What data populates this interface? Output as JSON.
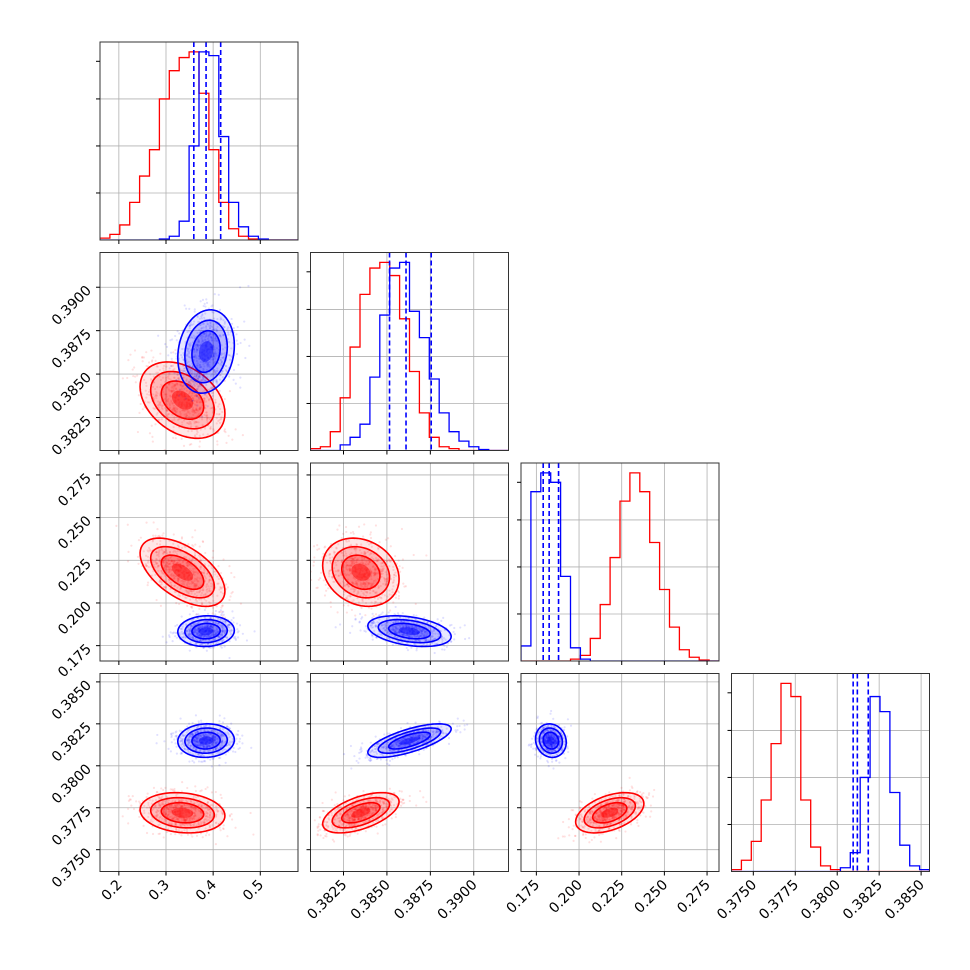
{
  "chart_data": {
    "type": "corner",
    "title": "",
    "parameters": [
      {
        "label": "",
        "range": [
          0.16,
          0.58
        ],
        "ticks": [
          0.2,
          0.3,
          0.4,
          0.5
        ],
        "tick_labels": [
          "0.2",
          "0.3",
          "0.4",
          "0.5"
        ]
      },
      {
        "label": "",
        "range": [
          0.3806,
          0.392
        ],
        "ticks": [
          0.3825,
          0.385,
          0.3875,
          0.39
        ],
        "tick_labels": [
          "0.3825",
          "0.3850",
          "0.3875",
          "0.3900"
        ]
      },
      {
        "label": "",
        "range": [
          0.166,
          0.282
        ],
        "ticks": [
          0.175,
          0.2,
          0.225,
          0.25,
          0.275
        ],
        "tick_labels": [
          "0.175",
          "0.200",
          "0.225",
          "0.250",
          "0.275"
        ]
      },
      {
        "label": "",
        "range": [
          0.3737,
          0.3855
        ],
        "ticks": [
          0.375,
          0.3775,
          0.38,
          0.3825,
          0.385
        ],
        "tick_labels": [
          "0.3750",
          "0.3775",
          "0.3800",
          "0.3825",
          "0.3850"
        ]
      }
    ],
    "series": [
      {
        "color": "#ff0000",
        "means": [
          0.335,
          0.3835,
          0.218,
          0.3772
        ],
        "sds": [
          0.045,
          0.0011,
          0.01,
          0.0006
        ],
        "correlations": {
          "0-1": -0.35,
          "0-2": -0.55,
          "0-3": -0.15,
          "1-2": -0.2,
          "1-3": 0.55,
          "2-3": 0.45
        },
        "histograms": [
          [
            0.01,
            0.03,
            0.08,
            0.2,
            0.34,
            0.48,
            0.75,
            0.9,
            0.97,
            1.0,
            0.78,
            0.48,
            0.2,
            0.06,
            0.02,
            0.005,
            0,
            0,
            0,
            0
          ],
          [
            0.01,
            0.02,
            0.1,
            0.28,
            0.55,
            0.83,
            0.97,
            1.0,
            0.93,
            0.7,
            0.42,
            0.2,
            0.07,
            0.02,
            0.01,
            0,
            0,
            0,
            0,
            0
          ],
          [
            0,
            0,
            0,
            0,
            0,
            0.01,
            0.03,
            0.12,
            0.3,
            0.55,
            0.85,
            1.0,
            0.9,
            0.63,
            0.38,
            0.18,
            0.06,
            0.02,
            0.005,
            0
          ],
          [
            0.01,
            0.06,
            0.16,
            0.38,
            0.68,
            1.0,
            0.93,
            0.38,
            0.13,
            0.03,
            0.01,
            0,
            0,
            0,
            0,
            0,
            0,
            0,
            0,
            0
          ]
        ]
      },
      {
        "color": "#0000ff",
        "means": [
          0.385,
          0.3863,
          0.1835,
          0.3815
        ],
        "sds": [
          0.03,
          0.0012,
          0.0045,
          0.0005
        ],
        "correlations": {
          "0-1": 0.15,
          "0-2": 0.05,
          "0-3": 0.05,
          "1-2": -0.35,
          "1-3": 0.7,
          "2-3": -0.1
        },
        "histograms": [
          [
            0,
            0,
            0,
            0,
            0,
            0,
            0.005,
            0.02,
            0.1,
            0.5,
            1.0,
            0.98,
            0.55,
            0.2,
            0.07,
            0.02,
            0.005,
            0,
            0,
            0
          ],
          [
            0,
            0,
            0,
            0.03,
            0.07,
            0.14,
            0.39,
            0.72,
            0.97,
            1.0,
            0.74,
            0.6,
            0.38,
            0.2,
            0.1,
            0.05,
            0.02,
            0.005,
            0,
            0
          ],
          [
            0.08,
            0.9,
            1.0,
            0.95,
            0.45,
            0.07,
            0.01,
            0,
            0,
            0,
            0,
            0,
            0,
            0,
            0,
            0,
            0,
            0,
            0,
            0
          ],
          [
            0,
            0,
            0,
            0,
            0,
            0,
            0,
            0,
            0,
            0,
            0,
            0.02,
            0.1,
            0.5,
            0.93,
            0.85,
            0.42,
            0.14,
            0.03,
            0.01
          ]
        ],
        "quantiles": [
          [
            0.359,
            0.385,
            0.416
          ],
          [
            0.38515,
            0.3861,
            0.38755
          ],
          [
            0.179,
            0.1825,
            0.188
          ],
          [
            0.38095,
            0.3812,
            0.38185
          ]
        ]
      }
    ],
    "grid": true,
    "legend": "none"
  }
}
